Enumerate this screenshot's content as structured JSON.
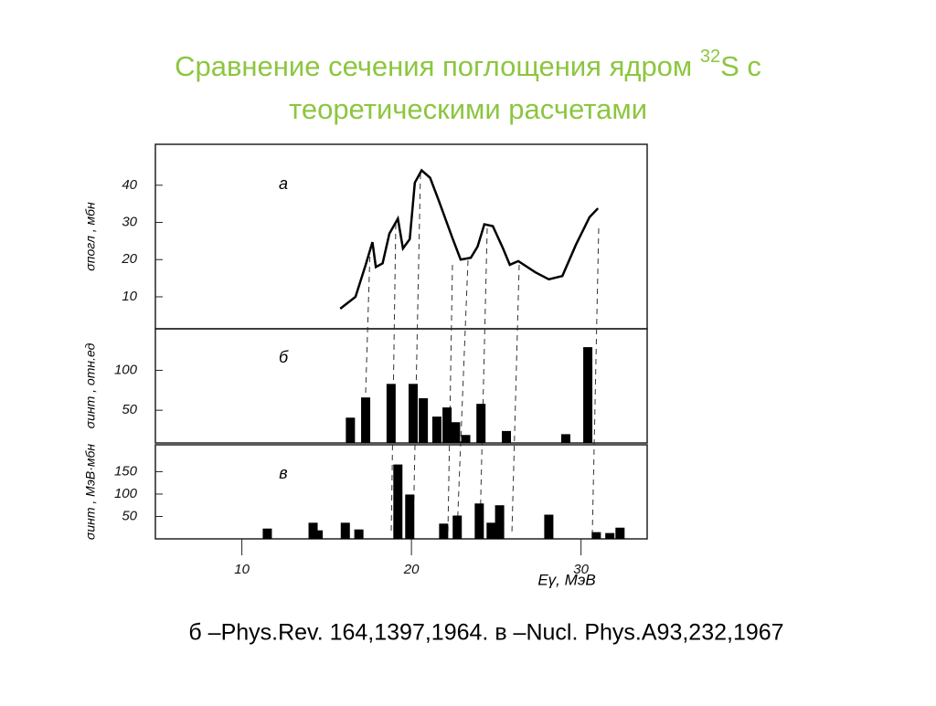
{
  "slide": {
    "title_parts": [
      "Сравнение сечения поглощения ядром ",
      "32",
      "S с",
      "теоретическими расчетами"
    ],
    "caption": "б –Phys.Rev. 164,1397,1964. в –Nucl. Phys.A93,232,1967"
  },
  "chart_data": [
    {
      "type": "line",
      "panel_label": "а",
      "y_label": "σпогл , мбн",
      "color": "#000000",
      "x": [
        15.8,
        16.7,
        17.3,
        17.7,
        17.9,
        18.3,
        18.7,
        19.2,
        19.5,
        19.9,
        20.2,
        20.6,
        21.1,
        21.6,
        22.4,
        22.9,
        23.5,
        23.9,
        24.3,
        24.8,
        25.4,
        25.8,
        26.3,
        27.3,
        28.1,
        28.9,
        29.7,
        30.5,
        31.0
      ],
      "values": [
        6.8,
        10,
        18.6,
        24.7,
        18,
        19,
        27,
        31,
        23,
        25.5,
        40.7,
        44,
        42,
        36,
        26,
        20,
        20.5,
        23.5,
        29.5,
        29,
        23,
        18.6,
        19.6,
        16.6,
        14.7,
        15.6,
        24,
        31.4,
        33.8
      ],
      "xlim": [
        4.9,
        33.9
      ],
      "ylim": [
        1.4,
        51
      ],
      "yticks": [
        10,
        20,
        30,
        40
      ]
    },
    {
      "type": "bar",
      "panel_label": "б",
      "y_label": "σинт , отн.ед",
      "color": "#000000",
      "x": [
        16.4,
        17.3,
        18.8,
        20.1,
        20.7,
        21.5,
        22.1,
        22.6,
        23.2,
        24.1,
        25.6,
        29.1,
        30.4
      ],
      "values": [
        40.7,
        66,
        83,
        83,
        65,
        42,
        53.5,
        35,
        19,
        58,
        24,
        20,
        129
      ],
      "xlim": [
        4.9,
        33.9
      ],
      "ylim": [
        9,
        152
      ],
      "yticks": [
        50,
        100
      ]
    },
    {
      "type": "bar",
      "panel_label": "в",
      "y_label": "σинт , МэВ·мбн",
      "x_label": "Eγ, МэВ",
      "color": "#000000",
      "x": [
        11.5,
        14.2,
        14.5,
        16.1,
        16.9,
        19.2,
        19.9,
        21.9,
        22.7,
        24.0,
        24.7,
        25.2,
        28.1,
        30.9,
        31.7,
        32.3
      ],
      "values": [
        23,
        36,
        19,
        36,
        21,
        166,
        99,
        34,
        52,
        79,
        36,
        75,
        54,
        15,
        13,
        25
      ],
      "xlim": [
        4.9,
        33.9
      ],
      "ylim": [
        0,
        210
      ],
      "yticks": [
        50,
        100,
        150
      ],
      "xticks": [
        10,
        20,
        30
      ]
    }
  ]
}
